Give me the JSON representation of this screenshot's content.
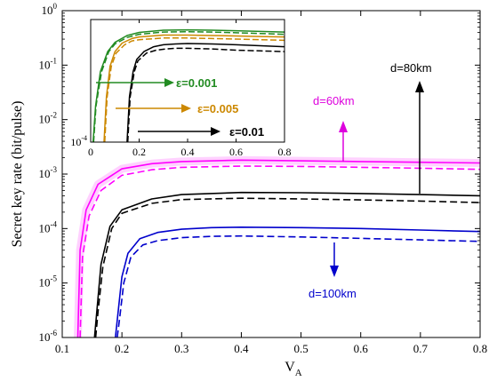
{
  "chart_data": [
    {
      "type": "line",
      "scale": {
        "x": "linear",
        "y": "log"
      },
      "xlim": [
        0.1,
        0.8
      ],
      "ylim": [
        1e-06,
        1
      ],
      "xticks": [
        "0.1",
        "0.2",
        "0.3",
        "0.4",
        "0.5",
        "0.6",
        "0.7",
        "0.8"
      ],
      "yticks": [
        {
          "base": "10",
          "exp": "0"
        },
        {
          "base": "10",
          "exp": "-1"
        },
        {
          "base": "10",
          "exp": "-2"
        },
        {
          "base": "10",
          "exp": "-3"
        },
        {
          "base": "10",
          "exp": "-4"
        },
        {
          "base": "10",
          "exp": "-5"
        },
        {
          "base": "10",
          "exp": "-6"
        }
      ],
      "xlabel": {
        "main": "V",
        "sub": "A"
      },
      "ylabel": "Secret key rate (bit/pulse)",
      "grid": false,
      "series": [
        {
          "style": "solid",
          "color": "#ff00ff",
          "x": [
            0.126,
            0.13,
            0.14,
            0.16,
            0.2,
            0.25,
            0.3,
            0.4,
            0.5,
            0.6,
            0.7,
            0.8
          ],
          "y": [
            1e-06,
            4e-05,
            0.00022,
            0.00065,
            0.00125,
            0.00155,
            0.0017,
            0.0018,
            0.00175,
            0.0017,
            0.00165,
            0.0016
          ]
        },
        {
          "style": "dashed",
          "color": "#ff00ff",
          "x": [
            0.13,
            0.134,
            0.145,
            0.165,
            0.2,
            0.25,
            0.3,
            0.4,
            0.5,
            0.6,
            0.7,
            0.8
          ],
          "y": [
            1e-06,
            3e-05,
            0.00017,
            0.0005,
            0.00095,
            0.0012,
            0.00133,
            0.0014,
            0.00138,
            0.00133,
            0.00128,
            0.00122
          ]
        },
        {
          "style": "solid",
          "color": "#000000",
          "x": [
            0.154,
            0.158,
            0.165,
            0.18,
            0.2,
            0.25,
            0.3,
            0.4,
            0.5,
            0.6,
            0.7,
            0.8
          ],
          "y": [
            1e-06,
            3e-06,
            2.2e-05,
            0.00011,
            0.00022,
            0.00035,
            0.00042,
            0.00046,
            0.000455,
            0.00044,
            0.00042,
            0.0004
          ]
        },
        {
          "style": "dashed",
          "color": "#000000",
          "x": [
            0.156,
            0.16,
            0.168,
            0.183,
            0.2,
            0.25,
            0.3,
            0.4,
            0.5,
            0.6,
            0.7,
            0.8
          ],
          "y": [
            1e-06,
            3e-06,
            2e-05,
            0.0001,
            0.00019,
            0.00029,
            0.00034,
            0.00036,
            0.00035,
            0.000335,
            0.00032,
            0.0003
          ]
        },
        {
          "style": "solid",
          "color": "#0000cc",
          "x": [
            0.189,
            0.193,
            0.2,
            0.21,
            0.23,
            0.26,
            0.3,
            0.35,
            0.4,
            0.5,
            0.6,
            0.7,
            0.8
          ],
          "y": [
            1e-06,
            2.5e-06,
            1.3e-05,
            3.5e-05,
            6.5e-05,
            8.5e-05,
            9.7e-05,
            0.000104,
            0.000106,
            0.000104,
            0.0001,
            9.4e-05,
            8.8e-05
          ]
        },
        {
          "style": "dashed",
          "color": "#0000cc",
          "x": [
            0.192,
            0.196,
            0.203,
            0.215,
            0.235,
            0.26,
            0.3,
            0.35,
            0.4,
            0.5,
            0.6,
            0.7,
            0.8
          ],
          "y": [
            1e-06,
            2.2e-06,
            1e-05,
            3e-05,
            5e-05,
            6e-05,
            6.8e-05,
            7.2e-05,
            7.3e-05,
            7e-05,
            6.6e-05,
            6.2e-05,
            5.8e-05
          ]
        }
      ],
      "annotations": [
        {
          "text": "d=60km",
          "color": "#dd00dd"
        },
        {
          "text": "d=80km",
          "color": "#000000"
        },
        {
          "text": "d=100km",
          "color": "#0000cc"
        }
      ]
    },
    {
      "type": "line",
      "role": "inset",
      "scale": {
        "x": "linear",
        "y": "log"
      },
      "xlim": [
        0,
        0.8
      ],
      "ylim": [
        0.0001,
        1
      ],
      "xticks": [
        "0",
        "0.2",
        "0.4",
        "0.6",
        "0.8"
      ],
      "yticks": [
        {
          "base": "10",
          "exp": "-4"
        }
      ],
      "series": [
        {
          "style": "solid",
          "color": "#228b22",
          "x": [
            0.01,
            0.02,
            0.04,
            0.07,
            0.1,
            0.15,
            0.2,
            0.3,
            0.4,
            0.5,
            0.6,
            0.7,
            0.8
          ],
          "y": [
            0.0001,
            0.0015,
            0.02,
            0.09,
            0.18,
            0.3,
            0.38,
            0.45,
            0.46,
            0.45,
            0.43,
            0.41,
            0.39
          ]
        },
        {
          "style": "dashed",
          "color": "#228b22",
          "x": [
            0.012,
            0.022,
            0.045,
            0.075,
            0.1,
            0.15,
            0.2,
            0.3,
            0.4,
            0.5,
            0.6,
            0.7,
            0.8
          ],
          "y": [
            0.0001,
            0.0015,
            0.02,
            0.09,
            0.16,
            0.26,
            0.33,
            0.39,
            0.4,
            0.39,
            0.37,
            0.35,
            0.33
          ]
        },
        {
          "style": "solid",
          "color": "#cc8800",
          "x": [
            0.055,
            0.065,
            0.08,
            0.1,
            0.13,
            0.17,
            0.2,
            0.3,
            0.4,
            0.5,
            0.6,
            0.7,
            0.8
          ],
          "y": [
            0.0001,
            0.003,
            0.03,
            0.09,
            0.17,
            0.24,
            0.27,
            0.31,
            0.31,
            0.3,
            0.29,
            0.28,
            0.27
          ]
        },
        {
          "style": "dashed",
          "color": "#cc8800",
          "x": [
            0.058,
            0.068,
            0.085,
            0.105,
            0.14,
            0.17,
            0.2,
            0.3,
            0.4,
            0.5,
            0.6,
            0.7,
            0.8
          ],
          "y": [
            0.0001,
            0.003,
            0.03,
            0.08,
            0.15,
            0.2,
            0.22,
            0.25,
            0.25,
            0.24,
            0.23,
            0.22,
            0.21
          ]
        },
        {
          "style": "solid",
          "color": "#000000",
          "x": [
            0.15,
            0.16,
            0.175,
            0.19,
            0.22,
            0.26,
            0.3,
            0.35,
            0.4,
            0.5,
            0.6,
            0.7,
            0.8
          ],
          "y": [
            0.0001,
            0.003,
            0.02,
            0.05,
            0.09,
            0.13,
            0.15,
            0.16,
            0.165,
            0.16,
            0.15,
            0.14,
            0.13
          ]
        },
        {
          "style": "dashed",
          "color": "#000000",
          "x": [
            0.153,
            0.163,
            0.18,
            0.195,
            0.23,
            0.27,
            0.31,
            0.35,
            0.4,
            0.5,
            0.6,
            0.7,
            0.8
          ],
          "y": [
            0.0001,
            0.003,
            0.02,
            0.045,
            0.08,
            0.1,
            0.11,
            0.115,
            0.115,
            0.11,
            0.1,
            0.095,
            0.09
          ]
        }
      ],
      "annotations": [
        {
          "text": "ε=0.001",
          "color": "#228b22"
        },
        {
          "text": "ε=0.005",
          "color": "#cc8800"
        },
        {
          "text": "ε=0.01",
          "color": "#000000"
        }
      ]
    }
  ]
}
